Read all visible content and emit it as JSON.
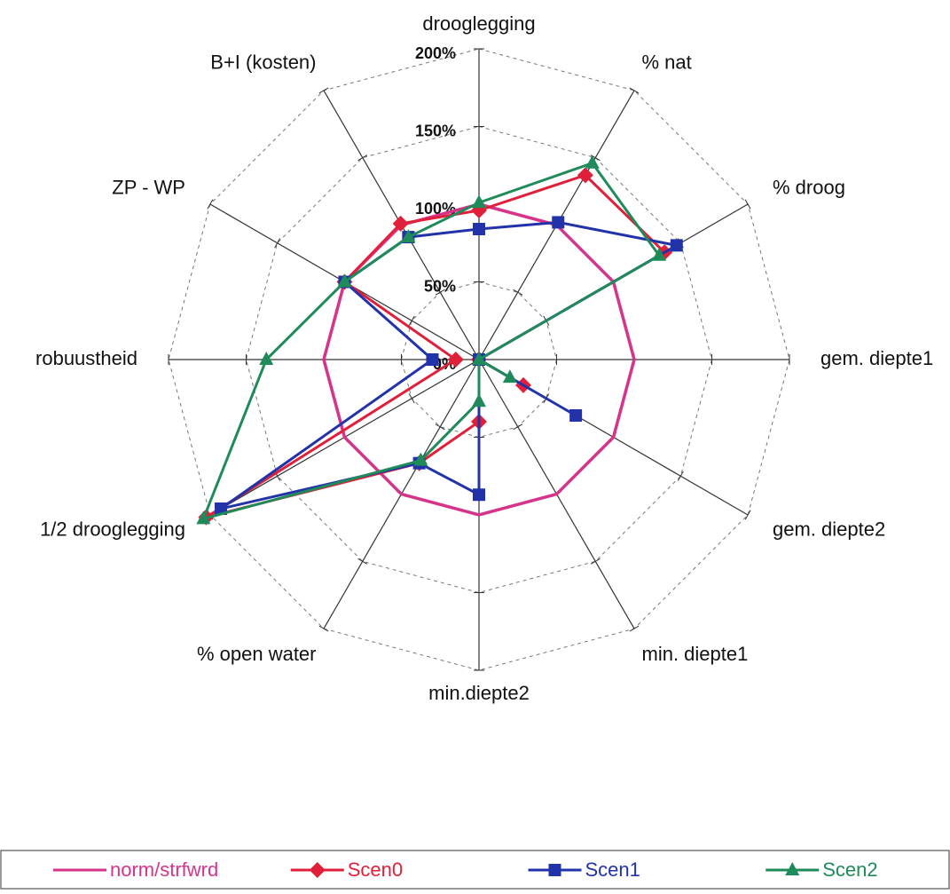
{
  "chart_data": {
    "type": "radar",
    "categories": [
      "drooglegging",
      "% nat",
      "% droog",
      "gem. diepte1",
      "gem. diepte2",
      "min. diepte1",
      "min.diepte2",
      "% open water",
      "1/2 drooglegging",
      "robuustheid",
      "ZP - WP",
      "B+I (kosten)"
    ],
    "series": [
      {
        "name": "norm/strfwrd",
        "color": "#d6338a",
        "marker": "none",
        "values": [
          100,
          100,
          100,
          100,
          100,
          100,
          100,
          100,
          100,
          100,
          100,
          100
        ]
      },
      {
        "name": "Scen0",
        "color": "#e0203a",
        "marker": "diamond",
        "values": [
          96,
          137,
          138,
          0,
          33,
          0,
          40,
          77,
          203,
          15,
          100,
          101
        ]
      },
      {
        "name": "Scen1",
        "color": "#2233aa",
        "marker": "square",
        "values": [
          84,
          102,
          147,
          0,
          72,
          0,
          87,
          77,
          192,
          30,
          100,
          91
        ]
      },
      {
        "name": "Scen2",
        "color": "#1f8a5a",
        "marker": "triangle",
        "values": [
          101,
          146,
          134,
          0,
          23,
          0,
          27,
          75,
          205,
          137,
          100,
          91
        ]
      }
    ],
    "ylim": [
      0,
      200
    ],
    "yticks": [
      {
        "value": 0,
        "label": "0%"
      },
      {
        "value": 50,
        "label": "50%"
      },
      {
        "value": 100,
        "label": "100%"
      },
      {
        "value": 150,
        "label": "150%"
      },
      {
        "value": 200,
        "label": "200%"
      }
    ],
    "grid": true
  }
}
